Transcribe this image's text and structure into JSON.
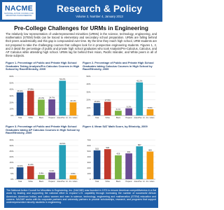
{
  "header": {
    "logo": "NACME",
    "logo_tagline": "NATIONAL ACTION COUNCIL FOR MINORITIES IN ENGINEERING",
    "title": "Research & Policy",
    "volume": "Volume 3, Number 4, January 2013"
  },
  "document_title": "Pre-College Challenges for URMs in Engineering",
  "body": "The relatively low representation of underrepresented minorities (URMs) in the science, technology, engineering, and mathematics (STEM) fields can be traced to elementary and secondary school preparation. URMs are falling behind their peers academically and this gap is compounded over time. By the time they reach high school, URM students are not prepared to take the challenging courses that colleges look for in prospective engineering students. Figures 1, 2, and 3 detail the percentage of public and private high school graduates who took Analysis/Pre-Calculus, Calculus, and AP Calculus while attending high school. URMs lag far behind their Asian, Pacific Islander, and White peers in all of these subjects.",
  "chart_data": [
    {
      "type": "bar",
      "title": "Figure 1. Percentage of Public and Private High School Graduates Taking Analysis/Pre-Calculus Courses in High School by Race/Ethnicity, 2009",
      "categories": [
        "Total",
        "White",
        "Black",
        "Hispanic",
        "Asian/Pac. Isl.",
        "Am. Indian"
      ],
      "values": [
        35.3,
        37.8,
        24.3,
        24.7,
        53.2,
        20.1
      ],
      "value_labels": [
        "35.3%",
        "37.8%",
        "24.3%",
        "24.7%",
        "53.2%",
        "20.1%"
      ],
      "colors": [
        "#1f4e8c",
        "#c0392b",
        "#7cb342",
        "#6a4c93",
        "#26a0b8",
        "#f39c12"
      ],
      "ylim": [
        0,
        60
      ],
      "yticks": [
        {
          "value": 0,
          "label": "0%"
        },
        {
          "value": 10,
          "label": "10%"
        },
        {
          "value": 20,
          "label": "20%"
        },
        {
          "value": 30,
          "label": "30%"
        },
        {
          "value": 40,
          "label": "40%"
        },
        {
          "value": 50,
          "label": "50%"
        },
        {
          "value": 60,
          "label": "60%"
        }
      ],
      "grid": true
    },
    {
      "type": "bar",
      "title": "Figure 2. Percentage of Public and Private High School Graduates taking Calculus Courses in High School by Race/Ethnicity, 2009",
      "categories": [
        "Total",
        "White",
        "Black",
        "Hispanic",
        "Asian/Pac. Isl.",
        "Am. Indian"
      ],
      "values": [
        15.9,
        17.5,
        6.1,
        9.2,
        42.2,
        8.0
      ],
      "value_labels": [
        "15.9%",
        "17.5%",
        "6.1%",
        "9.2%",
        "42.2%",
        "8.0%"
      ],
      "colors": [
        "#1f4e8c",
        "#c0392b",
        "#7cb342",
        "#6a4c93",
        "#26a0b8",
        "#f39c12"
      ],
      "ylim": [
        0,
        50
      ],
      "yticks": [
        {
          "value": 0,
          "label": "0%"
        },
        {
          "value": 10,
          "label": "10%"
        },
        {
          "value": 20,
          "label": "20%"
        },
        {
          "value": 30,
          "label": "30%"
        },
        {
          "value": 40,
          "label": "40%"
        },
        {
          "value": 50,
          "label": "50%"
        }
      ],
      "grid": true
    },
    {
      "type": "bar",
      "title": "Figure 3. Percentage of Public and Private High School Graduates taking AP Calculus Courses in High School by Race/Ethnicity, 2009",
      "categories": [
        "Total",
        "White",
        "Black",
        "Hispanic",
        "Asian/Pac. Isl.",
        "Am. Indian"
      ],
      "values": [
        10.6,
        11.6,
        3.8,
        6.0,
        30.5,
        3.5
      ],
      "value_labels": [
        "10.6%",
        "11.6%",
        "3.8%",
        "6.0%",
        "30.5%",
        "3.5%"
      ],
      "colors": [
        "#1f4e8c",
        "#c0392b",
        "#7cb342",
        "#6a4c93",
        "#26a0b8",
        "#f39c12"
      ],
      "ylim": [
        0,
        35
      ],
      "yticks": [
        {
          "value": 0,
          "label": "0%"
        },
        {
          "value": 5,
          "label": "5%"
        },
        {
          "value": 10,
          "label": "10%"
        },
        {
          "value": 15,
          "label": "15%"
        },
        {
          "value": 20,
          "label": "20%"
        },
        {
          "value": 25,
          "label": "25%"
        },
        {
          "value": 30,
          "label": "30%"
        },
        {
          "value": 35,
          "label": "35%"
        }
      ],
      "grid": true
    },
    {
      "type": "bar",
      "title": "Figure 4. Mean SAT Math Score, by Ethnicity, 2009",
      "categories": [
        "Total",
        "White",
        "Black",
        "Hispanic",
        "Asian/Pac. Isl.",
        "Am. Indian"
      ],
      "values": [
        515,
        536,
        426,
        461,
        587,
        493
      ],
      "colors": [
        "#1f4e8c",
        "#c0392b",
        "#7cb342",
        "#6a4c93",
        "#26a0b8",
        "#f39c12"
      ],
      "ylim": [
        0,
        700
      ],
      "yticks": [
        0,
        100,
        200,
        300,
        400,
        500,
        600,
        700
      ],
      "grid": true
    }
  ],
  "footer": "The National Action Council for Minorities in Engineering, Inc. (NACME) was founded in 1974 to ensure American competitiveness in a flat world by leading and supporting the national effort to expand U.S. capability through increasing the number of successful African American, American Indian, and Latino women and men in science, technology, engineering and mathematics (STEM) education and careers. NACME works with its corporate partners and university partners to provide scholarships, research, and programs that support underrepresented minority students in engineering."
}
